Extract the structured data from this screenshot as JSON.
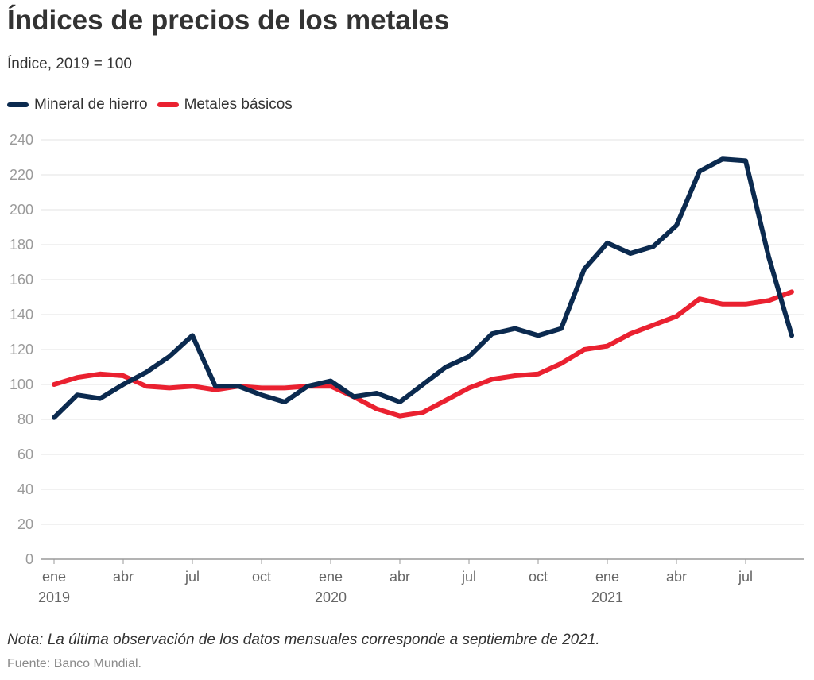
{
  "header": {
    "title": "Índices de precios de los metales",
    "subtitle": "Índice, 2019 = 100"
  },
  "legend": [
    {
      "label": "Mineral de hierro",
      "color": "#0b2a4f"
    },
    {
      "label": "Metales básicos",
      "color": "#ea2130"
    }
  ],
  "footer": {
    "note": "Nota: La última observación de los datos mensuales corresponde a septiembre de 2021.",
    "source": "Fuente: Banco Mundial."
  },
  "chart_data": {
    "type": "line",
    "x": [
      "2019-01",
      "2019-02",
      "2019-03",
      "2019-04",
      "2019-05",
      "2019-06",
      "2019-07",
      "2019-08",
      "2019-09",
      "2019-10",
      "2019-11",
      "2019-12",
      "2020-01",
      "2020-02",
      "2020-03",
      "2020-04",
      "2020-05",
      "2020-06",
      "2020-07",
      "2020-08",
      "2020-09",
      "2020-10",
      "2020-11",
      "2020-12",
      "2021-01",
      "2021-02",
      "2021-03",
      "2021-04",
      "2021-05",
      "2021-06",
      "2021-07",
      "2021-08",
      "2021-09"
    ],
    "x_ticks": [
      {
        "index": 0,
        "label": "ene",
        "year": "2019"
      },
      {
        "index": 3,
        "label": "abr",
        "year": ""
      },
      {
        "index": 6,
        "label": "jul",
        "year": ""
      },
      {
        "index": 9,
        "label": "oct",
        "year": ""
      },
      {
        "index": 12,
        "label": "ene",
        "year": "2020"
      },
      {
        "index": 15,
        "label": "abr",
        "year": ""
      },
      {
        "index": 18,
        "label": "jul",
        "year": ""
      },
      {
        "index": 21,
        "label": "oct",
        "year": ""
      },
      {
        "index": 24,
        "label": "ene",
        "year": "2021"
      },
      {
        "index": 27,
        "label": "abr",
        "year": ""
      },
      {
        "index": 30,
        "label": "jul",
        "year": ""
      }
    ],
    "series": [
      {
        "name": "Mineral de hierro",
        "color": "#0b2a4f",
        "values": [
          81,
          94,
          92,
          100,
          107,
          116,
          128,
          99,
          99,
          94,
          90,
          99,
          102,
          93,
          95,
          90,
          100,
          110,
          116,
          129,
          132,
          128,
          132,
          166,
          181,
          175,
          179,
          191,
          222,
          229,
          228,
          173,
          128
        ]
      },
      {
        "name": "Metales básicos",
        "color": "#ea2130",
        "values": [
          100,
          104,
          106,
          105,
          99,
          98,
          99,
          97,
          99,
          98,
          98,
          99,
          99,
          93,
          86,
          82,
          84,
          91,
          98,
          103,
          105,
          106,
          112,
          120,
          122,
          129,
          134,
          139,
          149,
          146,
          146,
          148,
          153
        ]
      }
    ],
    "ylim": [
      0,
      240
    ],
    "yticks": [
      0,
      20,
      40,
      60,
      80,
      100,
      120,
      140,
      160,
      180,
      200,
      220,
      240
    ],
    "grid": true,
    "legend_position": "top-left"
  }
}
